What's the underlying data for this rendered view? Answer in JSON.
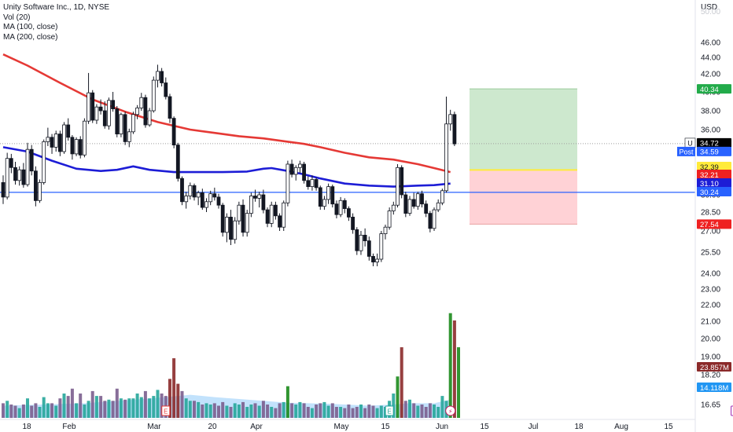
{
  "header": {
    "symbol_line": "Unity Software Inc., 1D, NYSE",
    "indicators": [
      "Vol (20)",
      "MA (100, close)",
      "MA (200, close)"
    ],
    "currency": "USD"
  },
  "chart_data": {
    "type": "candlestick",
    "title": "Unity Software Inc., 1D, NYSE",
    "ylim": [
      15.8,
      48.2
    ],
    "price_ticks": [
      "46.00",
      "44.00",
      "42.00",
      "40.00",
      "38.00",
      "36.00",
      "34.00",
      "32.00",
      "30.00",
      "28.50",
      "27.00",
      "25.50",
      "24.00",
      "23.00",
      "22.00",
      "21.00",
      "20.00",
      "19.00",
      "18.20",
      "17.40",
      "16.65"
    ],
    "x_tick_labels": [
      "18",
      "Feb",
      "Mar",
      "20",
      "Apr",
      "May",
      "15",
      "Jun",
      "15",
      "Jul",
      "18",
      "Aug",
      "15"
    ],
    "price_labels": [
      {
        "value": "40.34",
        "color": "#22ab4a",
        "text_color": "#ffffff",
        "prefix": ""
      },
      {
        "value": "34.72",
        "color": "#000000",
        "text_color": "#ffffff",
        "prefix": "U"
      },
      {
        "value": "34.59",
        "color": "#2962ff",
        "text_color": "#ffffff",
        "prefix": "Post"
      },
      {
        "value": "32.39",
        "color": "#ffeb3b",
        "text_color": "#131722",
        "prefix": ""
      },
      {
        "value": "32.21",
        "color": "#ef2121",
        "text_color": "#ffffff",
        "prefix": ""
      },
      {
        "value": "31.10",
        "color": "#1d1dd6",
        "text_color": "#ffffff",
        "prefix": ""
      },
      {
        "value": "30.24",
        "color": "#2962ff",
        "text_color": "#ffffff",
        "prefix": ""
      },
      {
        "value": "27.54",
        "color": "#ef2121",
        "text_color": "#ffffff",
        "prefix": ""
      },
      {
        "value": "23.857M",
        "color": "#8b2a2a",
        "text_color": "#ffffff",
        "prefix": ""
      },
      {
        "value": "14.118M",
        "color": "#2196f3",
        "text_color": "#ffffff",
        "prefix": ""
      }
    ],
    "horizontal_line": {
      "price": 30.24,
      "color": "#2962ff"
    },
    "last_price_line": 34.72,
    "position_tool": {
      "entry": 32.39,
      "target": 40.34,
      "stop": 27.54
    },
    "series": [
      {
        "name": "Price",
        "candles": [
          [
            31.2,
            31.9,
            29.2,
            29.8
          ],
          [
            29.8,
            33.9,
            29.6,
            33.4
          ],
          [
            33.4,
            33.8,
            32.1,
            32.6
          ],
          [
            32.6,
            33.1,
            31.0,
            31.4
          ],
          [
            31.4,
            32.7,
            30.9,
            32.4
          ],
          [
            32.4,
            33.0,
            30.7,
            31.0
          ],
          [
            31.0,
            34.8,
            30.8,
            34.2
          ],
          [
            34.2,
            34.6,
            31.9,
            32.3
          ],
          [
            32.3,
            32.7,
            29.0,
            29.5
          ],
          [
            29.5,
            31.5,
            29.3,
            31.2
          ],
          [
            31.2,
            35.1,
            31.0,
            34.9
          ],
          [
            34.9,
            36.2,
            34.5,
            35.3
          ],
          [
            35.3,
            35.6,
            33.8,
            34.4
          ],
          [
            34.4,
            35.9,
            34.0,
            35.6
          ],
          [
            35.6,
            35.9,
            33.6,
            34.0
          ],
          [
            34.0,
            36.8,
            33.8,
            36.5
          ],
          [
            36.5,
            37.2,
            35.0,
            35.3
          ],
          [
            35.3,
            35.5,
            33.3,
            33.8
          ],
          [
            33.8,
            35.3,
            33.6,
            35.1
          ],
          [
            35.1,
            35.4,
            33.4,
            33.7
          ],
          [
            33.7,
            37.2,
            33.5,
            36.9
          ],
          [
            36.9,
            42.1,
            36.6,
            39.9
          ],
          [
            39.9,
            40.2,
            36.7,
            37.0
          ],
          [
            37.0,
            38.7,
            36.6,
            38.4
          ],
          [
            38.4,
            39.2,
            37.6,
            38.0
          ],
          [
            38.0,
            39.0,
            36.1,
            36.4
          ],
          [
            36.4,
            39.4,
            36.0,
            39.1
          ],
          [
            39.1,
            40.0,
            37.9,
            38.2
          ],
          [
            38.2,
            38.5,
            35.3,
            35.6
          ],
          [
            35.6,
            37.8,
            35.3,
            37.6
          ],
          [
            37.6,
            37.9,
            34.6,
            34.9
          ],
          [
            34.9,
            36.1,
            34.4,
            35.8
          ],
          [
            35.8,
            37.9,
            35.6,
            37.6
          ],
          [
            37.6,
            38.6,
            37.1,
            38.3
          ],
          [
            38.3,
            39.9,
            38.0,
            39.4
          ],
          [
            39.4,
            39.7,
            36.2,
            36.5
          ],
          [
            36.5,
            38.3,
            36.3,
            38.0
          ],
          [
            38.0,
            41.7,
            37.8,
            41.3
          ],
          [
            41.3,
            43.1,
            40.5,
            42.3
          ],
          [
            42.3,
            42.7,
            40.6,
            41.0
          ],
          [
            41.0,
            41.6,
            39.2,
            39.5
          ],
          [
            39.5,
            39.8,
            36.7,
            37.2
          ],
          [
            37.2,
            37.4,
            34.3,
            34.6
          ],
          [
            34.6,
            34.8,
            31.3,
            31.6
          ],
          [
            31.6,
            31.8,
            29.1,
            29.4
          ],
          [
            29.4,
            30.3,
            28.8,
            29.9
          ],
          [
            29.9,
            31.2,
            29.6,
            30.9
          ],
          [
            30.9,
            31.1,
            29.5,
            29.8
          ],
          [
            29.8,
            30.4,
            29.1,
            30.2
          ],
          [
            30.2,
            30.6,
            28.7,
            28.9
          ],
          [
            28.9,
            29.7,
            28.5,
            29.4
          ],
          [
            29.4,
            30.4,
            29.1,
            30.1
          ],
          [
            30.1,
            30.7,
            29.5,
            29.8
          ],
          [
            29.8,
            30.1,
            28.8,
            29.1
          ],
          [
            29.1,
            29.3,
            26.6,
            26.9
          ],
          [
            26.9,
            28.4,
            26.2,
            28.1
          ],
          [
            28.1,
            28.7,
            26.0,
            26.4
          ],
          [
            26.4,
            28.1,
            26.1,
            27.8
          ],
          [
            27.8,
            29.4,
            27.5,
            29.1
          ],
          [
            29.1,
            29.6,
            26.6,
            26.9
          ],
          [
            26.9,
            28.7,
            26.6,
            28.4
          ],
          [
            28.4,
            30.2,
            28.1,
            29.9
          ],
          [
            29.9,
            30.5,
            29.4,
            29.7
          ],
          [
            29.7,
            30.3,
            28.9,
            30.0
          ],
          [
            30.0,
            30.5,
            28.4,
            28.7
          ],
          [
            28.7,
            28.9,
            27.3,
            27.6
          ],
          [
            27.6,
            29.4,
            27.3,
            29.1
          ],
          [
            29.1,
            29.4,
            27.9,
            28.2
          ],
          [
            28.2,
            28.4,
            27.0,
            27.3
          ],
          [
            27.3,
            29.5,
            27.0,
            29.3
          ],
          [
            29.3,
            33.2,
            29.0,
            32.9
          ],
          [
            32.9,
            33.3,
            31.7,
            32.0
          ],
          [
            32.0,
            32.8,
            31.4,
            32.6
          ],
          [
            32.6,
            33.2,
            32.1,
            32.9
          ],
          [
            32.9,
            33.1,
            31.1,
            31.4
          ],
          [
            31.4,
            31.8,
            30.5,
            30.8
          ],
          [
            30.8,
            31.9,
            30.4,
            31.5
          ],
          [
            31.5,
            31.7,
            30.4,
            30.7
          ],
          [
            30.7,
            30.9,
            28.7,
            29.0
          ],
          [
            29.0,
            29.9,
            28.7,
            29.6
          ],
          [
            29.6,
            31.1,
            29.2,
            30.8
          ],
          [
            30.8,
            31.0,
            28.9,
            29.2
          ],
          [
            29.2,
            29.5,
            28.0,
            28.3
          ],
          [
            28.3,
            29.8,
            28.1,
            29.5
          ],
          [
            29.5,
            29.7,
            28.4,
            28.8
          ],
          [
            28.8,
            29.0,
            27.8,
            28.1
          ],
          [
            28.1,
            28.4,
            26.8,
            27.1
          ],
          [
            27.1,
            27.3,
            25.3,
            25.6
          ],
          [
            25.6,
            27.0,
            25.3,
            26.7
          ],
          [
            26.7,
            27.2,
            25.9,
            26.3
          ],
          [
            26.3,
            26.6,
            24.9,
            25.2
          ],
          [
            25.2,
            25.4,
            24.5,
            24.8
          ],
          [
            24.8,
            25.4,
            24.5,
            25.0
          ],
          [
            25.0,
            27.0,
            24.8,
            26.8
          ],
          [
            26.8,
            27.5,
            26.4,
            27.3
          ],
          [
            27.3,
            28.9,
            27.1,
            28.6
          ],
          [
            28.6,
            29.4,
            28.3,
            29.1
          ],
          [
            29.1,
            32.9,
            28.9,
            32.6
          ],
          [
            32.6,
            32.8,
            29.7,
            30.0
          ],
          [
            30.0,
            30.3,
            28.1,
            28.4
          ],
          [
            28.4,
            29.9,
            28.2,
            29.6
          ],
          [
            29.6,
            30.2,
            28.8,
            29.0
          ],
          [
            29.0,
            30.3,
            28.7,
            30.1
          ],
          [
            30.1,
            30.4,
            28.9,
            29.2
          ],
          [
            29.2,
            29.5,
            28.1,
            28.4
          ],
          [
            28.4,
            28.6,
            26.9,
            27.2
          ],
          [
            27.2,
            28.9,
            27.0,
            28.7
          ],
          [
            28.7,
            29.6,
            28.5,
            29.3
          ],
          [
            29.3,
            30.6,
            29.1,
            30.4
          ],
          [
            30.4,
            39.5,
            30.2,
            36.6
          ],
          [
            36.6,
            38.1,
            35.9,
            37.6
          ],
          [
            37.6,
            37.9,
            34.5,
            34.7
          ]
        ]
      },
      {
        "name": "MA (100, close)",
        "color": "#e53935",
        "points": [
          [
            0,
            44.4
          ],
          [
            6,
            43.0
          ],
          [
            14,
            41.0
          ],
          [
            22,
            39.2
          ],
          [
            30,
            37.9
          ],
          [
            38,
            36.8
          ],
          [
            46,
            36.0
          ],
          [
            52,
            35.7
          ],
          [
            58,
            35.4
          ],
          [
            64,
            35.2
          ],
          [
            70,
            34.9
          ],
          [
            74,
            34.7
          ],
          [
            78,
            34.4
          ],
          [
            84,
            33.9
          ],
          [
            90,
            33.5
          ],
          [
            96,
            33.3
          ],
          [
            102,
            32.9
          ],
          [
            106,
            32.55
          ],
          [
            110,
            32.2
          ]
        ]
      },
      {
        "name": "MA (200, close)",
        "color": "#1d1dd6",
        "points": [
          [
            0,
            34.4
          ],
          [
            6,
            34.0
          ],
          [
            12,
            33.2
          ],
          [
            18,
            32.5
          ],
          [
            24,
            32.3
          ],
          [
            28,
            32.4
          ],
          [
            32,
            32.7
          ],
          [
            36,
            32.4
          ],
          [
            42,
            32.2
          ],
          [
            48,
            32.2
          ],
          [
            54,
            32.2
          ],
          [
            60,
            32.25
          ],
          [
            64,
            32.5
          ],
          [
            66,
            32.55
          ],
          [
            70,
            32.3
          ],
          [
            74,
            32.0
          ],
          [
            78,
            31.6
          ],
          [
            84,
            31.1
          ],
          [
            90,
            30.9
          ],
          [
            96,
            30.8
          ],
          [
            102,
            30.9
          ],
          [
            106,
            30.95
          ],
          [
            110,
            31.1
          ]
        ]
      },
      {
        "name": "Vol (20)",
        "volume": [
          0.6,
          0.7,
          0.55,
          0.5,
          0.4,
          0.55,
          0.8,
          0.5,
          0.6,
          0.45,
          0.85,
          0.6,
          0.6,
          0.5,
          0.8,
          1.0,
          0.9,
          1.2,
          0.6,
          1.0,
          0.55,
          0.7,
          1.1,
          0.9,
          0.9,
          0.7,
          0.75,
          0.7,
          1.2,
          0.8,
          0.75,
          0.8,
          0.8,
          1.0,
          0.85,
          1.1,
          0.8,
          0.9,
          1.15,
          1.0,
          0.9,
          1.6,
          2.45,
          1.4,
          1.1,
          0.8,
          0.7,
          0.7,
          0.65,
          0.55,
          0.6,
          0.55,
          0.6,
          0.5,
          0.65,
          0.5,
          0.45,
          0.6,
          0.55,
          0.65,
          0.45,
          0.55,
          0.6,
          0.5,
          0.7,
          0.55,
          0.45,
          0.4,
          0.6,
          0.65,
          1.3,
          0.6,
          0.55,
          0.65,
          0.6,
          0.45,
          0.4,
          0.55,
          0.6,
          0.65,
          0.5,
          0.6,
          0.45,
          0.45,
          0.4,
          0.55,
          0.4,
          0.45,
          0.55,
          0.4,
          0.55,
          0.5,
          0.4,
          0.5,
          0.45,
          0.7,
          1.0,
          1.7,
          2.9,
          0.7,
          0.75,
          0.6,
          0.5,
          0.55,
          0.45,
          0.6,
          0.55,
          0.45,
          0.9,
          0.7,
          4.3,
          4.0,
          2.9
        ]
      },
      {
        "name": "Volume MA (20)",
        "points": [
          [
            0,
            0.5
          ],
          [
            10,
            0.55
          ],
          [
            20,
            0.6
          ],
          [
            30,
            0.72
          ],
          [
            40,
            0.85
          ],
          [
            46,
            0.95
          ],
          [
            52,
            0.85
          ],
          [
            60,
            0.75
          ],
          [
            70,
            0.62
          ],
          [
            80,
            0.58
          ],
          [
            90,
            0.5
          ],
          [
            96,
            0.55
          ],
          [
            100,
            0.6
          ],
          [
            106,
            0.6
          ],
          [
            110,
            0.75
          ]
        ]
      }
    ],
    "events": [
      {
        "x": 40,
        "label": "E",
        "color": "#e53935"
      },
      {
        "x": 95,
        "label": "E",
        "color": "#26a69a"
      },
      {
        "x": 110,
        "label": "⚡",
        "color": "#c2185b"
      },
      {
        "x": 180,
        "label": "E",
        "color": "#9c27b0"
      }
    ]
  }
}
